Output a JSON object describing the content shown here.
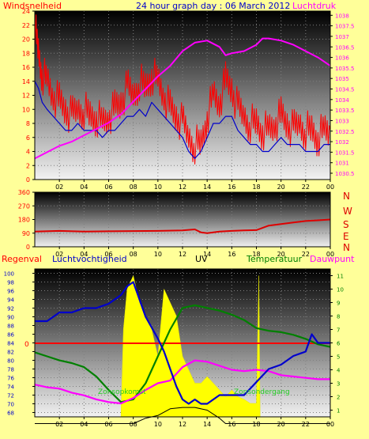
{
  "header": {
    "left_label": "Windsnelheid",
    "title": "24 hour graph day : 06 March 2012",
    "right_label": "Luchtdruk"
  },
  "compass": [
    "N",
    "W",
    "S",
    "E",
    "N"
  ],
  "bottom_header": {
    "rain": "Regenval",
    "humidity": "Luchtvochtigheid",
    "uv": "UV",
    "temperature": "Temperatuur",
    "dewpoint": "Dauwpunt"
  },
  "annotations": {
    "sunrise": "Zonsopkomst",
    "sunset": "Zonsondergang",
    "rain_zero": "0"
  },
  "colors": {
    "wind_gust": "#ff0000",
    "wind_avg": "#0000cc",
    "pressure": "#ff00ff",
    "direction": "#dd0000",
    "humidity": "#0000cc",
    "temperature": "#008000",
    "dewpoint": "#ff00ff",
    "solar": "#ffff00",
    "uv": "#000000",
    "sun_label": "#22cc22",
    "header_left": "#ff0000",
    "header_title": "#0000cc",
    "header_right": "#ff00ff"
  },
  "chart_data": [
    {
      "type": "line",
      "name": "wind-pressure",
      "x_ticks": [
        "02",
        "04",
        "06",
        "08",
        "10",
        "12",
        "14",
        "16",
        "18",
        "20",
        "22",
        "00"
      ],
      "x_range": [
        0,
        24
      ],
      "left_axis": {
        "ticks": [
          0,
          2,
          4,
          6,
          8,
          10,
          12,
          14,
          16,
          18,
          20,
          22,
          24
        ],
        "range": [
          0,
          24
        ]
      },
      "right_axis": {
        "ticks": [
          1030.5,
          1031,
          1031.5,
          1032,
          1032.5,
          1033,
          1033.5,
          1034,
          1034.5,
          1035,
          1035.5,
          1036,
          1036.5,
          1037,
          1037.5,
          1038
        ],
        "range": [
          1030.2,
          1038.2
        ]
      },
      "series": [
        {
          "key": "gust",
          "axis": "left",
          "x": [
            0,
            0.3,
            0.6,
            1,
            1.5,
            2,
            2.5,
            3,
            3.5,
            4,
            4.5,
            5,
            5.5,
            6,
            6.5,
            7,
            7.5,
            8,
            8.5,
            9,
            9.5,
            10,
            10.5,
            11,
            11.5,
            12,
            12.5,
            13,
            13.5,
            14,
            14.5,
            15,
            15.5,
            16,
            16.5,
            17,
            17.5,
            18,
            18.5,
            19,
            19.5,
            20,
            20.5,
            21,
            21.5,
            22,
            22.5,
            23,
            23.5,
            24
          ],
          "y": [
            22,
            18,
            15,
            14,
            12,
            11,
            10,
            9,
            10,
            10,
            9,
            9,
            8,
            9,
            10,
            11,
            13,
            12,
            14,
            13,
            15,
            14,
            12,
            10,
            9,
            8,
            6,
            5,
            5,
            9,
            12,
            11,
            14,
            13,
            10,
            9,
            8,
            8,
            7,
            7,
            8,
            9,
            8,
            7,
            8,
            7,
            7,
            6,
            7,
            7
          ]
        },
        {
          "key": "avg",
          "axis": "left",
          "x": [
            0,
            0.3,
            0.6,
            1,
            1.5,
            2,
            2.5,
            3,
            3.5,
            4,
            4.5,
            5,
            5.5,
            6,
            6.5,
            7,
            7.5,
            8,
            8.5,
            9,
            9.5,
            10,
            10.5,
            11,
            11.5,
            12,
            12.5,
            13,
            13.5,
            14,
            14.5,
            15,
            15.5,
            16,
            16.5,
            17,
            17.5,
            18,
            18.5,
            19,
            19.5,
            20,
            20.5,
            21,
            21.5,
            22,
            22.5,
            23,
            23.5,
            24
          ],
          "y": [
            14,
            13,
            11,
            10,
            9,
            8,
            7,
            7,
            8,
            7,
            7,
            7,
            6,
            7,
            7,
            8,
            9,
            9,
            10,
            9,
            11,
            10,
            9,
            8,
            7,
            6,
            4,
            3,
            4,
            6,
            8,
            8,
            9,
            9,
            7,
            6,
            5,
            5,
            4,
            4,
            5,
            6,
            5,
            5,
            5,
            4,
            4,
            4,
            5,
            5
          ]
        },
        {
          "key": "pressure",
          "axis": "right",
          "x": [
            0,
            1,
            2,
            3,
            4,
            5,
            6,
            7,
            8,
            9,
            10,
            11,
            12,
            13,
            14,
            15,
            15.5,
            16,
            17,
            18,
            18.5,
            19,
            20,
            21,
            22,
            23,
            24
          ],
          "y": [
            1031.2,
            1031.5,
            1031.8,
            1032.0,
            1032.3,
            1032.6,
            1032.9,
            1033.3,
            1033.9,
            1034.5,
            1035.1,
            1035.6,
            1036.3,
            1036.7,
            1036.8,
            1036.5,
            1036.1,
            1036.2,
            1036.3,
            1036.6,
            1036.9,
            1036.9,
            1036.8,
            1036.6,
            1036.3,
            1036.0,
            1035.6
          ]
        }
      ]
    },
    {
      "type": "line",
      "name": "wind-direction",
      "x_ticks": [
        "02",
        "04",
        "06",
        "08",
        "10",
        "12",
        "14",
        "16",
        "18",
        "20",
        "22",
        "00"
      ],
      "x_range": [
        0,
        24
      ],
      "y_axis": {
        "ticks": [
          0,
          90,
          180,
          270,
          360
        ],
        "range": [
          0,
          360
        ]
      },
      "series": [
        {
          "key": "direction",
          "x": [
            0,
            2,
            4,
            6,
            8,
            10,
            12,
            13,
            13.5,
            14,
            15,
            16,
            17,
            18,
            19,
            20,
            21,
            22,
            23,
            24
          ],
          "y": [
            100,
            105,
            100,
            102,
            104,
            105,
            108,
            115,
            95,
            90,
            100,
            105,
            108,
            110,
            140,
            150,
            160,
            170,
            175,
            180
          ]
        }
      ]
    },
    {
      "type": "line",
      "name": "humidity-temperature-uv",
      "x_ticks": [
        "02",
        "04",
        "06",
        "08",
        "10",
        "12",
        "14",
        "16",
        "18",
        "20",
        "22",
        "00"
      ],
      "x_range": [
        0,
        24
      ],
      "left_axis": {
        "ticks": [
          68,
          70,
          72,
          74,
          76,
          78,
          80,
          82,
          84,
          86,
          88,
          90,
          92,
          94,
          96,
          98,
          100
        ],
        "range": [
          67,
          101
        ]
      },
      "right_axis": {
        "ticks": [
          1,
          2,
          3,
          4,
          5,
          6,
          7,
          8,
          9,
          10,
          11
        ],
        "range": [
          0.5,
          11.5
        ]
      },
      "series": [
        {
          "key": "humidity",
          "axis": "left",
          "x": [
            0,
            1,
            2,
            3,
            4,
            5,
            6,
            7,
            7.5,
            8,
            8.5,
            9,
            10,
            10.5,
            11,
            11.5,
            12,
            12.5,
            13,
            13.5,
            14,
            15,
            16,
            17,
            18,
            19,
            20,
            21,
            22,
            22.5,
            23,
            24
          ],
          "y": [
            89,
            89,
            91,
            91,
            92,
            92,
            93,
            95,
            97,
            98,
            94,
            90,
            85,
            82,
            78,
            74,
            71,
            70,
            71,
            70,
            70,
            72,
            72,
            72,
            75,
            78,
            79,
            81,
            82,
            86,
            84,
            84
          ]
        },
        {
          "key": "temperature",
          "axis": "right",
          "x": [
            0,
            1,
            2,
            3,
            4,
            5,
            6,
            7,
            8,
            9,
            10,
            11,
            12,
            13,
            14,
            15,
            16,
            17,
            18,
            19,
            20,
            21,
            22,
            23,
            24
          ],
          "y": [
            5.3,
            5.0,
            4.7,
            4.5,
            4.2,
            3.5,
            2.5,
            1.6,
            1.8,
            3.0,
            5.0,
            7.0,
            8.6,
            8.8,
            8.6,
            8.4,
            8.1,
            7.7,
            7.1,
            6.9,
            6.8,
            6.6,
            6.3,
            5.9,
            5.7
          ]
        },
        {
          "key": "dewpoint",
          "axis": "right",
          "x": [
            0,
            1,
            2,
            3,
            4,
            5,
            6,
            7,
            8,
            9,
            10,
            11,
            12,
            13,
            14,
            15,
            16,
            17,
            18,
            19,
            20,
            21,
            22,
            23,
            24
          ],
          "y": [
            2.9,
            2.7,
            2.6,
            2.3,
            2.1,
            1.8,
            1.6,
            1.5,
            1.9,
            2.5,
            3.0,
            3.2,
            4.2,
            4.7,
            4.6,
            4.3,
            4.0,
            3.9,
            4.0,
            3.9,
            3.6,
            3.5,
            3.4,
            3.3,
            3.3
          ]
        },
        {
          "key": "uv",
          "axis": "right",
          "x": [
            0,
            7,
            8,
            9,
            10,
            11,
            12,
            13,
            14,
            15,
            15.5,
            24
          ],
          "y": [
            0,
            0,
            0,
            0.4,
            0.6,
            1.1,
            1.2,
            1.2,
            1.0,
            0.4,
            0,
            0
          ]
        }
      ],
      "solar_area": {
        "axis": "right",
        "x": [
          7,
          7.2,
          7.5,
          8,
          8.5,
          9,
          9.5,
          10,
          10.5,
          11,
          11.5,
          12,
          12.5,
          13,
          13.5,
          14,
          14.5,
          15,
          15.5,
          16,
          16.5,
          17,
          17.5,
          18,
          18.2,
          18.3
        ],
        "y": [
          0,
          7,
          10,
          11,
          9,
          8,
          7,
          5,
          10,
          9,
          8,
          5,
          4,
          3,
          3,
          3.5,
          3,
          2.5,
          2,
          2.5,
          2,
          1.8,
          1.5,
          1.5,
          11,
          0
        ]
      },
      "rain_total": 0
    }
  ]
}
